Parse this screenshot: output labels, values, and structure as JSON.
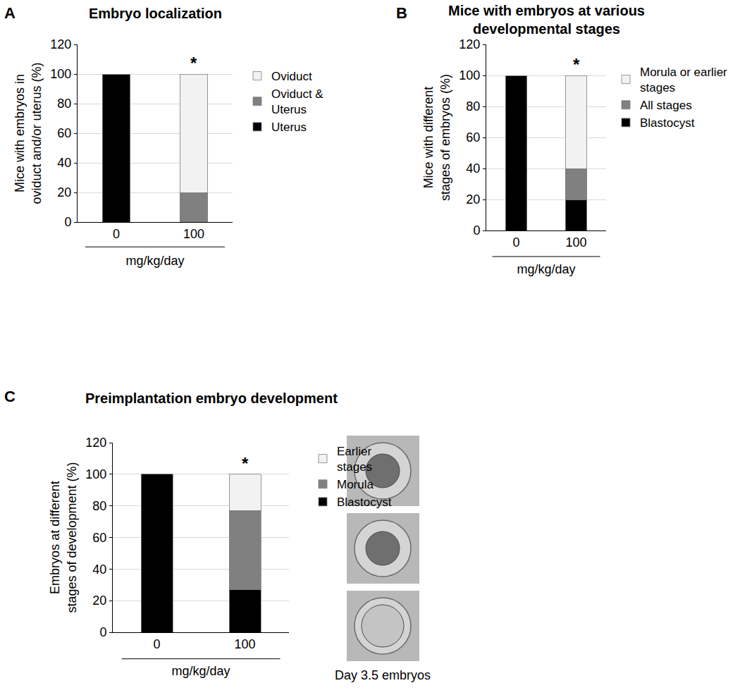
{
  "chart_data": [
    {
      "type": "bar",
      "panel": "A",
      "title": "Embryo localization",
      "stacked": true,
      "grid": true,
      "legend": "right",
      "xlabel": "mg/kg/day",
      "ylabel": "Mice with embryos in oviduct and/or uterus (%)",
      "categories": [
        "0",
        "100"
      ],
      "series": [
        {
          "name": "Uterus",
          "color": "#000000",
          "values": [
            100,
            0
          ]
        },
        {
          "name": "Oviduct & Uterus",
          "color": "#808080",
          "values": [
            0,
            20
          ]
        },
        {
          "name": "Oviduct",
          "color": "#f2f2f2",
          "values": [
            0,
            80
          ]
        }
      ],
      "ylim": [
        0,
        120
      ],
      "yticks": [
        0,
        20,
        40,
        60,
        80,
        100,
        120
      ],
      "annotations": [
        {
          "text": "*",
          "category": "100"
        }
      ]
    },
    {
      "type": "bar",
      "panel": "B",
      "title": "Mice with embryos at various developmental stages",
      "stacked": true,
      "grid": true,
      "legend": "right",
      "xlabel": "mg/kg/day",
      "ylabel": "Mice with different stages of embryos (%)",
      "categories": [
        "0",
        "100"
      ],
      "series": [
        {
          "name": "Blastocyst",
          "color": "#000000",
          "values": [
            100,
            20
          ]
        },
        {
          "name": "All stages",
          "color": "#808080",
          "values": [
            0,
            20
          ]
        },
        {
          "name": "Morula or earlier stages",
          "color": "#f2f2f2",
          "values": [
            0,
            60
          ]
        }
      ],
      "ylim": [
        0,
        120
      ],
      "yticks": [
        0,
        20,
        40,
        60,
        80,
        100,
        120
      ],
      "annotations": [
        {
          "text": "*",
          "category": "100"
        }
      ]
    },
    {
      "type": "bar",
      "panel": "C",
      "title": "Preimplantation embryo development",
      "stacked": true,
      "grid": true,
      "legend": "right",
      "xlabel": "mg/kg/day",
      "ylabel": "Embryos at different stages of development (%)",
      "categories": [
        "0",
        "100"
      ],
      "series": [
        {
          "name": "Blastocyst",
          "color": "#000000",
          "values": [
            100,
            27
          ]
        },
        {
          "name": "Morula",
          "color": "#808080",
          "values": [
            0,
            50
          ]
        },
        {
          "name": "Earlier stages",
          "color": "#f2f2f2",
          "values": [
            0,
            23
          ]
        }
      ],
      "ylim": [
        0,
        120
      ],
      "yticks": [
        0,
        20,
        40,
        60,
        80,
        100,
        120
      ],
      "annotations": [
        {
          "text": "*",
          "category": "100"
        },
        {
          "text": "Day 3.5 embryos"
        }
      ]
    }
  ]
}
